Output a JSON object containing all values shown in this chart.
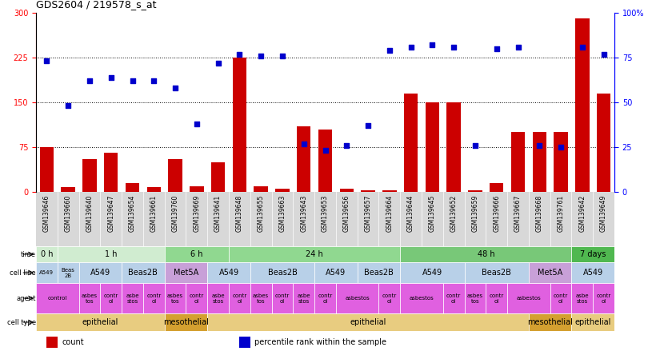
{
  "title": "GDS2604 / 219578_s_at",
  "samples": [
    "GSM139646",
    "GSM139660",
    "GSM139640",
    "GSM139647",
    "GSM139654",
    "GSM139661",
    "GSM139760",
    "GSM139669",
    "GSM139641",
    "GSM139648",
    "GSM139655",
    "GSM139663",
    "GSM139643",
    "GSM139653",
    "GSM139656",
    "GSM139657",
    "GSM139664",
    "GSM139644",
    "GSM139645",
    "GSM139652",
    "GSM139659",
    "GSM139666",
    "GSM139667",
    "GSM139668",
    "GSM139761",
    "GSM139642",
    "GSM139649"
  ],
  "count_values": [
    75,
    8,
    55,
    65,
    15,
    8,
    55,
    10,
    50,
    225,
    10,
    5,
    110,
    105,
    5,
    3,
    3,
    165,
    150,
    150,
    3,
    15,
    100,
    100,
    100,
    290,
    165
  ],
  "percentile_values": [
    73,
    48,
    62,
    64,
    62,
    62,
    58,
    38,
    72,
    77,
    76,
    76,
    27,
    23,
    26,
    37,
    79,
    81,
    82,
    81,
    26,
    80,
    81,
    26,
    25,
    81,
    77
  ],
  "ylim_left": [
    0,
    300
  ],
  "ylim_right": [
    0,
    100
  ],
  "yticks_left": [
    0,
    75,
    150,
    225,
    300
  ],
  "yticks_right": [
    0,
    25,
    50,
    75,
    100
  ],
  "ytick_labels_left": [
    "0",
    "75",
    "150",
    "225",
    "300"
  ],
  "ytick_labels_right": [
    "0",
    "25",
    "50",
    "75",
    "100%"
  ],
  "bar_color": "#cc0000",
  "dot_color": "#0000cc",
  "hline_values": [
    75,
    150,
    225
  ],
  "time_groups": [
    {
      "text": "0 h",
      "start": 0,
      "end": 1,
      "color": "#d0ecd0"
    },
    {
      "text": "1 h",
      "start": 1,
      "end": 6,
      "color": "#d0ecd0"
    },
    {
      "text": "6 h",
      "start": 6,
      "end": 9,
      "color": "#90d890"
    },
    {
      "text": "24 h",
      "start": 9,
      "end": 17,
      "color": "#90d890"
    },
    {
      "text": "48 h",
      "start": 17,
      "end": 25,
      "color": "#78c878"
    },
    {
      "text": "7 days",
      "start": 25,
      "end": 27,
      "color": "#50b850"
    }
  ],
  "cellline_groups": [
    {
      "text": "A549",
      "start": 0,
      "end": 1,
      "color": "#b8d0e8",
      "fs": 5
    },
    {
      "text": "Beas\n2B",
      "start": 1,
      "end": 2,
      "color": "#b8d0e8",
      "fs": 5
    },
    {
      "text": "A549",
      "start": 2,
      "end": 4,
      "color": "#b8d0e8",
      "fs": 7
    },
    {
      "text": "Beas2B",
      "start": 4,
      "end": 6,
      "color": "#b8d0e8",
      "fs": 7
    },
    {
      "text": "Met5A",
      "start": 6,
      "end": 8,
      "color": "#c8a0d8",
      "fs": 7
    },
    {
      "text": "A549",
      "start": 8,
      "end": 10,
      "color": "#b8d0e8",
      "fs": 7
    },
    {
      "text": "Beas2B",
      "start": 10,
      "end": 13,
      "color": "#b8d0e8",
      "fs": 7
    },
    {
      "text": "A549",
      "start": 13,
      "end": 15,
      "color": "#b8d0e8",
      "fs": 7
    },
    {
      "text": "Beas2B",
      "start": 15,
      "end": 17,
      "color": "#b8d0e8",
      "fs": 7
    },
    {
      "text": "A549",
      "start": 17,
      "end": 20,
      "color": "#b8d0e8",
      "fs": 7
    },
    {
      "text": "Beas2B",
      "start": 20,
      "end": 23,
      "color": "#b8d0e8",
      "fs": 7
    },
    {
      "text": "Met5A",
      "start": 23,
      "end": 25,
      "color": "#c8a0d8",
      "fs": 7
    },
    {
      "text": "A549",
      "start": 25,
      "end": 27,
      "color": "#b8d0e8",
      "fs": 7
    }
  ],
  "agent_segments": [
    {
      "text": "control",
      "start": 0,
      "end": 2,
      "color": "#e060e0"
    },
    {
      "text": "asbes\ntos",
      "start": 2,
      "end": 3,
      "color": "#e060e0"
    },
    {
      "text": "contr\nol",
      "start": 3,
      "end": 4,
      "color": "#e060e0"
    },
    {
      "text": "asbe\nstos",
      "start": 4,
      "end": 5,
      "color": "#e060e0"
    },
    {
      "text": "contr\nol",
      "start": 5,
      "end": 6,
      "color": "#e060e0"
    },
    {
      "text": "asbes\ntos",
      "start": 6,
      "end": 7,
      "color": "#e060e0"
    },
    {
      "text": "contr\nol",
      "start": 7,
      "end": 8,
      "color": "#e060e0"
    },
    {
      "text": "asbe\nstos",
      "start": 8,
      "end": 9,
      "color": "#e060e0"
    },
    {
      "text": "contr\nol",
      "start": 9,
      "end": 10,
      "color": "#e060e0"
    },
    {
      "text": "asbes\ntos",
      "start": 10,
      "end": 11,
      "color": "#e060e0"
    },
    {
      "text": "contr\nol",
      "start": 11,
      "end": 12,
      "color": "#e060e0"
    },
    {
      "text": "asbe\nstos",
      "start": 12,
      "end": 13,
      "color": "#e060e0"
    },
    {
      "text": "contr\nol",
      "start": 13,
      "end": 14,
      "color": "#e060e0"
    },
    {
      "text": "asbestos",
      "start": 14,
      "end": 16,
      "color": "#e060e0"
    },
    {
      "text": "contr\nol",
      "start": 16,
      "end": 17,
      "color": "#e060e0"
    },
    {
      "text": "asbestos",
      "start": 17,
      "end": 19,
      "color": "#e060e0"
    },
    {
      "text": "contr\nol",
      "start": 19,
      "end": 20,
      "color": "#e060e0"
    },
    {
      "text": "asbes\ntos",
      "start": 20,
      "end": 21,
      "color": "#e060e0"
    },
    {
      "text": "contr\nol",
      "start": 21,
      "end": 22,
      "color": "#e060e0"
    },
    {
      "text": "asbestos",
      "start": 22,
      "end": 24,
      "color": "#e060e0"
    },
    {
      "text": "contr\nol",
      "start": 24,
      "end": 25,
      "color": "#e060e0"
    },
    {
      "text": "asbe\nstos",
      "start": 25,
      "end": 26,
      "color": "#e060e0"
    },
    {
      "text": "contr\nol",
      "start": 26,
      "end": 27,
      "color": "#e060e0"
    }
  ],
  "celltype_groups": [
    {
      "text": "epithelial",
      "start": 0,
      "end": 6,
      "color": "#e8cc80"
    },
    {
      "text": "mesothelial",
      "start": 6,
      "end": 8,
      "color": "#d4a030"
    },
    {
      "text": "epithelial",
      "start": 8,
      "end": 23,
      "color": "#e8cc80"
    },
    {
      "text": "mesothelial",
      "start": 23,
      "end": 25,
      "color": "#d4a030"
    },
    {
      "text": "epithelial",
      "start": 25,
      "end": 27,
      "color": "#e8cc80"
    }
  ],
  "legend": [
    {
      "color": "#cc0000",
      "label": "count"
    },
    {
      "color": "#0000cc",
      "label": "percentile rank within the sample"
    }
  ]
}
